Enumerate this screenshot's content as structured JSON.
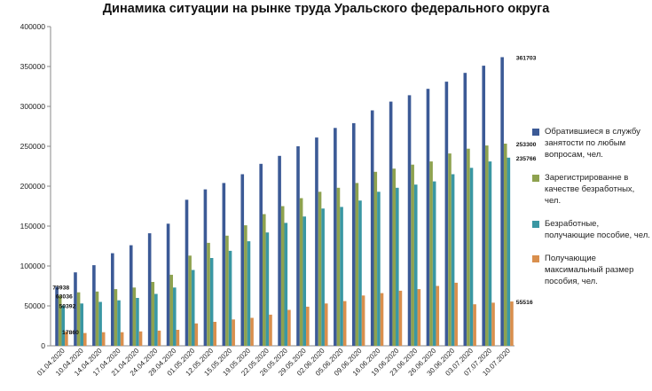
{
  "chart_data": {
    "type": "bar",
    "title": "Динамика ситуации  на рынке труда Уральского федерального округа",
    "categories": [
      "01.04.2020",
      "10.04.2020",
      "14.04.2020",
      "17.04.2020",
      "21.04.2020",
      "24.04.2020",
      "28.04.2020",
      "01.05.2020",
      "12.05.2020",
      "15.05.2020",
      "19.05.2020",
      "22.05.2020",
      "26.05.2020",
      "29.05.2020",
      "02.06.2020",
      "05.06.2020",
      "09.06.2020",
      "16.06.2020",
      "19.06.2020",
      "23.06.2020",
      "26.06.2020",
      "30.06.2020",
      "03.07.2020",
      "07.07.2020",
      "10.07.2020"
    ],
    "ylim": [
      0,
      400000
    ],
    "yticks": [
      "0",
      "50000",
      "100000",
      "150000",
      "200000",
      "250000",
      "300000",
      "350000",
      "400000"
    ],
    "legend_position": "right",
    "series": [
      {
        "name": "Обратившиеся в службу занятости по любым вопросам, чел.",
        "color": "#3c5a96",
        "values": [
          73938,
          92000,
          101000,
          116000,
          126000,
          141000,
          153000,
          183000,
          196000,
          204000,
          215000,
          228000,
          238000,
          250000,
          261000,
          273000,
          279000,
          295000,
          306000,
          314000,
          322000,
          331000,
          342000,
          351000,
          361703
        ]
      },
      {
        "name": "Зарегистрированне в качестве безработных, чел.",
        "color": "#8ea24f",
        "values": [
          63036,
          67000,
          68000,
          71000,
          73000,
          80000,
          89000,
          113000,
          129000,
          138000,
          151000,
          165000,
          175000,
          185000,
          193000,
          198000,
          204000,
          218000,
          222000,
          227000,
          231000,
          241000,
          247000,
          251000,
          253300
        ]
      },
      {
        "name": "Безработные, получающие пособие, чел.",
        "color": "#3a97a3",
        "values": [
          50392,
          53000,
          55000,
          57000,
          60000,
          65000,
          73000,
          95000,
          110000,
          119000,
          131000,
          142000,
          154000,
          162000,
          172000,
          174000,
          182000,
          193000,
          198000,
          202000,
          206000,
          215000,
          223000,
          231000,
          235766
        ]
      },
      {
        "name": "Получающие максимальный размер пособия, чел.",
        "color": "#d98f4d",
        "values": [
          17860,
          16000,
          17000,
          17000,
          18000,
          19000,
          20000,
          28000,
          30000,
          33000,
          35000,
          39000,
          45000,
          49000,
          53000,
          56000,
          63000,
          66000,
          69000,
          71000,
          75000,
          79000,
          52000,
          54000,
          55516
        ]
      }
    ],
    "data_labels": [
      {
        "series": 0,
        "index": 0,
        "text": "73938"
      },
      {
        "series": 1,
        "index": 0,
        "text": "63036"
      },
      {
        "series": 2,
        "index": 0,
        "text": "50392"
      },
      {
        "series": 3,
        "index": 0,
        "text": "17860"
      },
      {
        "series": 0,
        "index": 24,
        "text": "361703"
      },
      {
        "series": 1,
        "index": 24,
        "text": "253300"
      },
      {
        "series": 2,
        "index": 24,
        "text": "235766"
      },
      {
        "series": 3,
        "index": 24,
        "text": "55516"
      }
    ]
  }
}
